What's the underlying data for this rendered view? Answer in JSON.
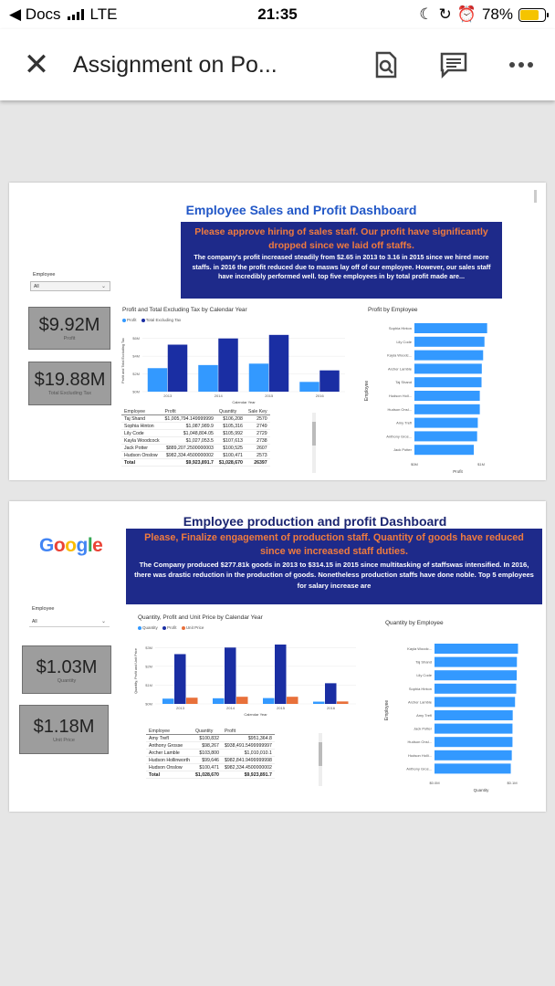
{
  "status": {
    "back_label": "◀ Docs",
    "network": "LTE",
    "time": "21:35",
    "battery": "78%",
    "battery_level": 0.78
  },
  "app_bar": {
    "title": "Assignment on Po...",
    "icons": [
      "close-icon",
      "document-search-icon",
      "comment-icon",
      "more-icon"
    ]
  },
  "dash1": {
    "title": "Employee Sales and Profit Dashboard",
    "headline": "Please approve hiring of sales staff. Our profit have significantly dropped since we laid off staffs.",
    "body": "The company's profit increased steadily from $2.65 in 2013 to 3.16 in 2015 since we hired more staffs. in 2016 the profit reduced due to masws lay off  of our employee. However, our sales staff have incredibly performed well. top five employees in  by total profit made are...",
    "slicer_label": "Employee",
    "slicer_value": "All",
    "kpi1_value": "$9.92M",
    "kpi1_label": "Profit",
    "kpi2_value": "$19.88M",
    "kpi2_label": "Total Excluding Tax",
    "bar_title": "Profit and Total Excluding Tax by Calendar Year",
    "bar_legend": [
      "Profit",
      "Total Excluding Tax"
    ],
    "bar_ylabel": "Profit and Total Excluding Tax",
    "bar_xlabel": "Calendar Year",
    "bar_yticks": [
      "$6M",
      "$4M",
      "$2M",
      "$0M"
    ],
    "hbar_title": "Profit by Employee",
    "hbar_ylabel": "Employee",
    "hbar_xlabel": "Profit",
    "hbar_xticks": [
      "$0M",
      "$1M"
    ],
    "table_headers": [
      "Employee",
      "Profit",
      "Quantity",
      "Sale Key"
    ],
    "table_rows": [
      [
        "Taj Shand",
        "$1,005,794.149999999",
        "$106,208",
        "2570"
      ],
      [
        "Sophia Hinton",
        "$1,087,989.9",
        "$105,316",
        "2749"
      ],
      [
        "Lily Code",
        "$1,048,804.05",
        "$105,992",
        "2729"
      ],
      [
        "Kayla Woodcock",
        "$1,027,053.5",
        "$107,613",
        "2738"
      ],
      [
        "Jack Potter",
        "$889,207.2500000003",
        "$100,525",
        "2607"
      ],
      [
        "Hudson Onslow",
        "$982,334.4500000002",
        "$100,471",
        "2573"
      ]
    ],
    "table_total": [
      "Total",
      "$9,923,891.7",
      "$1,028,670",
      "26397"
    ]
  },
  "dash2": {
    "title": "Employee production and profit Dashboard",
    "headline": "Please, Finalize engagement of production staff. Quantity of goods have reduced since we increased staff duties.",
    "body": "The Company produced $277.81k goods in 2013 to $314.15 in 2015 since multitasking of staffswas intensified. In 2016, there was drastic reduction in the production of goods. Nonetheless production staffs have done noble. Top 5 employees for salary increase are",
    "logo": "Google",
    "slicer_label": "Employee",
    "slicer_value": "All",
    "kpi1_value": "$1.03M",
    "kpi1_label": "Quantity",
    "kpi2_value": "$1.18M",
    "kpi2_label": "Unit Price",
    "bar_title": "Quantity, Profit and Unit Price by Calendar Year",
    "bar_legend": [
      "Quantity",
      "Profit",
      "Unit Price"
    ],
    "bar_ylabel": "Quantity, Profit and Unit Price",
    "bar_xlabel": "Calendar Year",
    "bar_yticks": [
      "$3M",
      "$2M",
      "$1M",
      "$0M"
    ],
    "hbar_title": "Quantity by Employee",
    "hbar_ylabel": "Employee",
    "hbar_xlabel": "Quantity",
    "hbar_xticks": [
      "$0.0M",
      "$0.1M"
    ],
    "table_headers": [
      "Employee",
      "Quantity",
      "Profit"
    ],
    "table_rows": [
      [
        "Amy Trefl",
        "$100,832",
        "$951,364.8"
      ],
      [
        "Anthony Grosse",
        "$98,267",
        "$938,491.5499999997"
      ],
      [
        "Archer Lamble",
        "$103,800",
        "$1,010,010.1"
      ],
      [
        "Hudson Hollinworth",
        "$99,646",
        "$982,841.9499999998"
      ],
      [
        "Hudson Onslow",
        "$100,471",
        "$982,334.4500000002"
      ]
    ],
    "table_total": [
      "Total",
      "$1,028,670",
      "$9,923,891.7"
    ]
  },
  "colors": {
    "light_blue": "#3399ff",
    "dark_blue": "#1a2ea3",
    "orange": "#e8703a",
    "banner": "#1e2a8a",
    "title_blue": "#2157c7",
    "title_navy": "#1a2470"
  },
  "chart_data": [
    {
      "type": "bar",
      "title": "Profit and Total Excluding Tax by Calendar Year",
      "xlabel": "Calendar Year",
      "ylabel": "Profit and Total Excluding Tax",
      "categories": [
        "2013",
        "2014",
        "2015",
        "2016"
      ],
      "ylim": [
        0,
        7
      ],
      "series": [
        {
          "name": "Profit",
          "values": [
            2.65,
            3.0,
            3.16,
            1.1
          ]
        },
        {
          "name": "Total Excluding Tax",
          "values": [
            5.3,
            6.0,
            6.4,
            2.4
          ]
        }
      ]
    },
    {
      "type": "bar",
      "orientation": "horizontal",
      "title": "Profit by Employee",
      "xlabel": "Profit",
      "ylabel": "Employee",
      "xlim": [
        0,
        1.3
      ],
      "categories": [
        "Sophia Hinton",
        "Lily Code",
        "Kayla Woodc...",
        "Archer Lamble",
        "Taj Shand",
        "Hudson Holl...",
        "Hudson Onsl...",
        "Amy Trefl",
        "Anthony Gros...",
        "Jack Potter"
      ],
      "values": [
        1.09,
        1.05,
        1.03,
        1.01,
        1.006,
        0.98,
        0.98,
        0.95,
        0.94,
        0.89
      ]
    },
    {
      "type": "bar",
      "title": "Quantity, Profit and Unit Price by Calendar Year",
      "xlabel": "Calendar Year",
      "ylabel": "Quantity, Profit and Unit Price",
      "categories": [
        "2013",
        "2014",
        "2015",
        "2016"
      ],
      "ylim": [
        0,
        3.5
      ],
      "series": [
        {
          "name": "Quantity",
          "values": [
            0.28,
            0.3,
            0.31,
            0.12
          ]
        },
        {
          "name": "Profit",
          "values": [
            2.65,
            3.0,
            3.16,
            1.1
          ]
        },
        {
          "name": "Unit Price",
          "values": [
            0.33,
            0.38,
            0.38,
            0.13
          ]
        }
      ]
    },
    {
      "type": "bar",
      "orientation": "horizontal",
      "title": "Quantity by Employee",
      "xlabel": "Quantity",
      "ylabel": "Employee",
      "xlim": [
        0,
        0.12
      ],
      "categories": [
        "Kayla Woodc...",
        "Taj Shand",
        "Lily Code",
        "Sophia Hinton",
        "Archer Lamble",
        "Amy Trefl",
        "Jack Potter",
        "Hudson Onsl...",
        "Hudson Holli...",
        "Anthony Gros..."
      ],
      "values": [
        0.1076,
        0.1062,
        0.106,
        0.1053,
        0.1038,
        0.1008,
        0.1005,
        0.1005,
        0.0996,
        0.0983
      ]
    }
  ]
}
